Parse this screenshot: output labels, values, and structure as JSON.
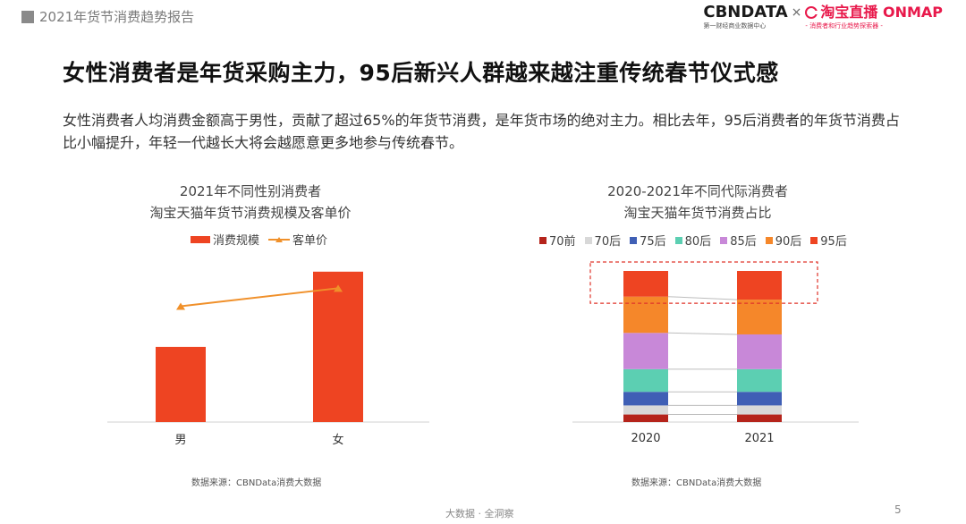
{
  "header": {
    "report_title": "2021年货节消费趋势报告",
    "logo_cbn": "CBNDATA",
    "logo_cbn_sub": "第一财经商业数据中心",
    "logo_cross": "×",
    "logo_taobao": "淘宝直播 ONMAP",
    "logo_taobao_sub": "- 消费者和行业趋势探索器 -"
  },
  "headline": "女性消费者是年货采购主力，95后新兴人群越来越注重传统春节仪式感",
  "description": "女性消费者人均消费金额高于男性，贡献了超过65%的年货节消费，是年货市场的绝对主力。相比去年，95后消费者的年货节消费占比小幅提升，年轻一代越长大将会越愿意更多地参与传统春节。",
  "charts": [
    {
      "title_line1": "2021年不同性别消费者",
      "title_line2": "淘宝天猫年货节消费规模及客单价",
      "source": "数据来源：CBNData消费大数据"
    },
    {
      "title_line1": "2020-2021年不同代际消费者",
      "title_line2": "淘宝天猫年货节消费占比",
      "source": "数据来源：CBNData消费大数据"
    }
  ],
  "chart_data": [
    {
      "type": "bar",
      "title": "2021年不同性别消费者 淘宝天猫年货节消费规模及客单价",
      "categories": [
        "男",
        "女"
      ],
      "series": [
        {
          "name": "消费规模",
          "type": "bar",
          "values": [
            0.5,
            1.0
          ],
          "color": "#ee4422"
        },
        {
          "name": "客单价",
          "type": "line",
          "values": [
            0.77,
            0.89
          ],
          "color": "#f0902a"
        }
      ],
      "ylim": [
        0,
        1.1
      ],
      "grid": false,
      "legend": "top"
    },
    {
      "type": "bar",
      "stacked": true,
      "title": "2020-2021年不同代际消费者 淘宝天猫年货节消费占比",
      "categories": [
        "2020",
        "2021"
      ],
      "series": [
        {
          "name": "70前",
          "color": "#b5241b",
          "values": [
            5.0,
            5.0
          ]
        },
        {
          "name": "70后",
          "color": "#d8d8d8",
          "values": [
            6.0,
            6.0
          ]
        },
        {
          "name": "75后",
          "color": "#3f5fb5",
          "values": [
            9.0,
            9.0
          ]
        },
        {
          "name": "80后",
          "color": "#5ccfb2",
          "values": [
            15.0,
            15.0
          ]
        },
        {
          "name": "85后",
          "color": "#c888d8",
          "values": [
            24.0,
            23.0
          ]
        },
        {
          "name": "90后",
          "color": "#f5872a",
          "values": [
            24.0,
            23.0
          ]
        },
        {
          "name": "95后",
          "color": "#ee4422",
          "values": [
            17.0,
            19.0
          ]
        }
      ],
      "ylim": [
        0,
        100
      ],
      "grid": false,
      "legend": "top"
    }
  ],
  "footer": {
    "center": "大数据 · 全洞察",
    "page": "5"
  }
}
